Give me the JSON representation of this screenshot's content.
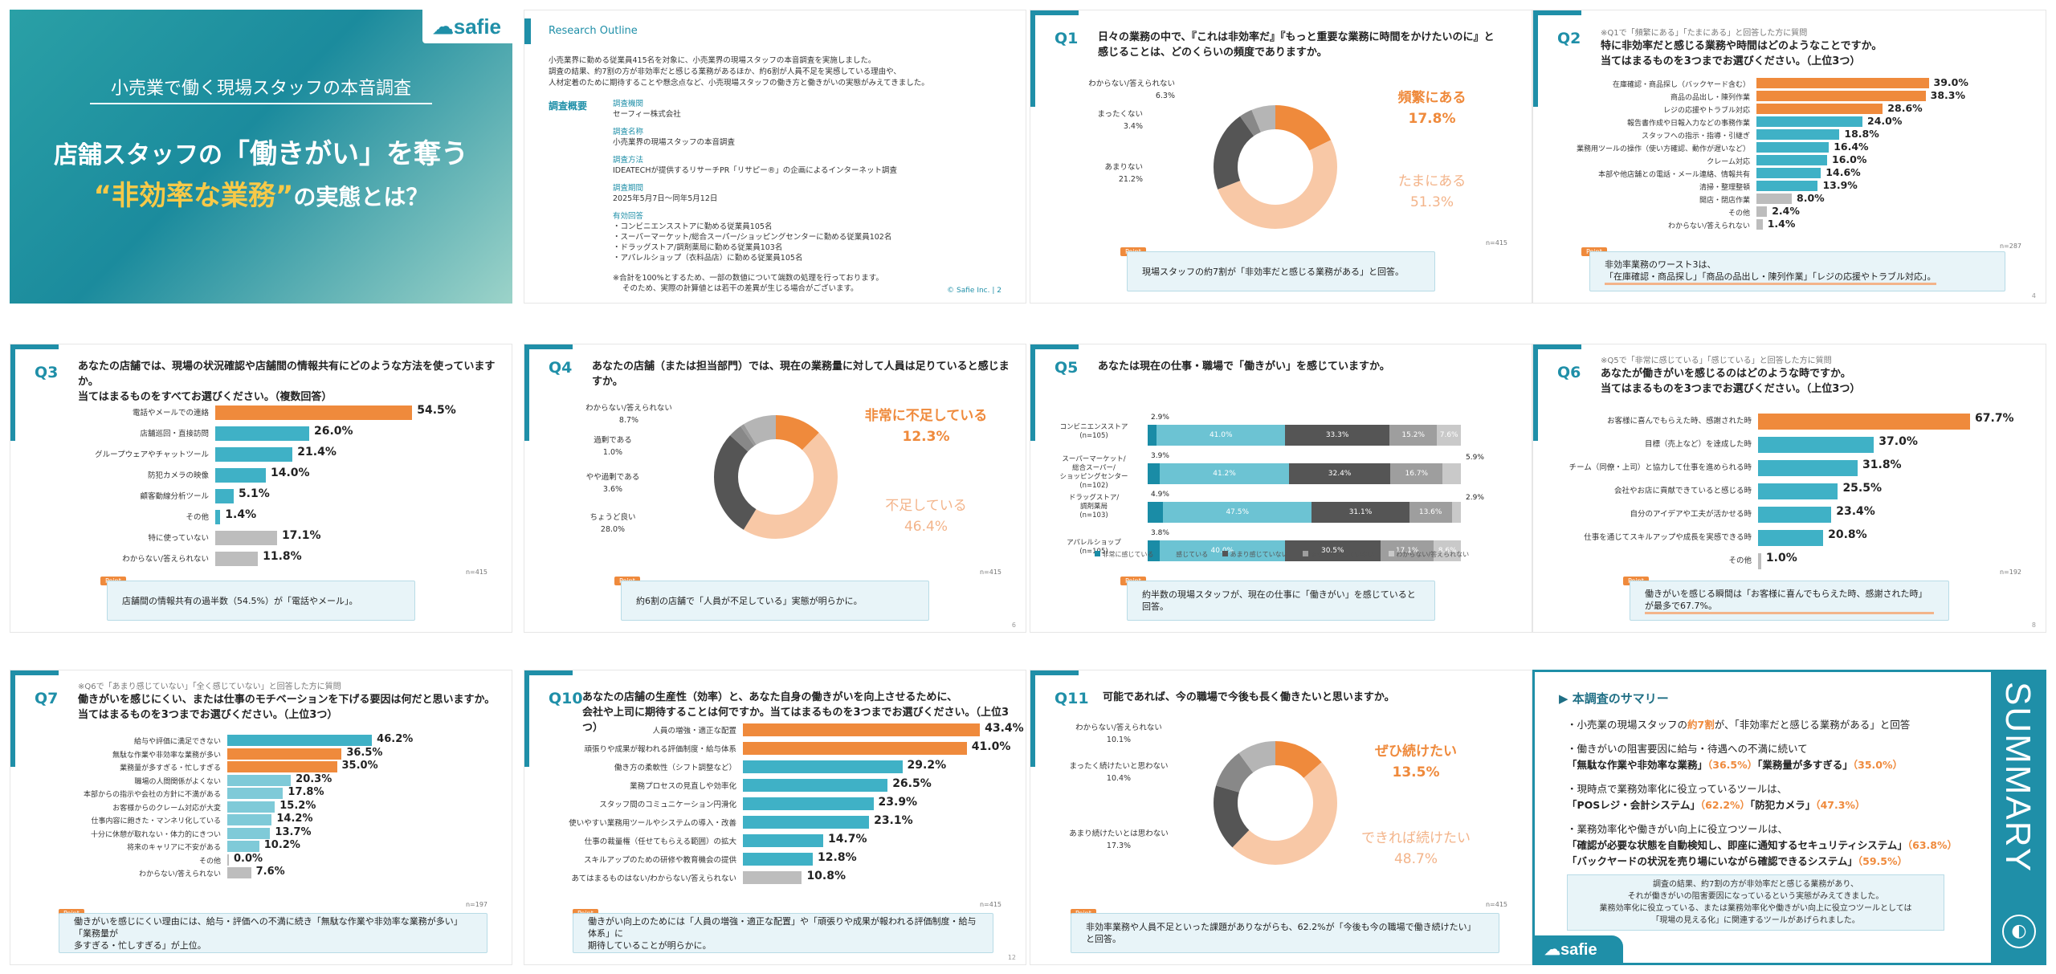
{
  "cover": {
    "brand": "safie",
    "subtitle": "小売業で働く現場スタッフの本音調査",
    "title_line1_a": "店舗スタッフの",
    "title_line1_b": "「働きがい」を奪う",
    "title_line2_a": "“非効率な業務”",
    "title_line2_b": "の実態とは？"
  },
  "outline": {
    "header": "Research Outline",
    "intro": [
      "小売業界に勤める従業員415名を対象に、小売業界の現場スタッフの本音調査を実施しました。",
      "調査の結果、約7割の方が非効率だと感じる業務があるほか、約6割が人員不足を実感している理由や、",
      "人材定着のために期待することや懸念点など、小売現場スタッフの働き方と働きがいの実態がみえてきました。"
    ],
    "section_label": "調査概要",
    "items": [
      {
        "k": "調査機関",
        "v": "セーフィー株式会社"
      },
      {
        "k": "調査名称",
        "v": "小売業界の現場スタッフの本音調査"
      },
      {
        "k": "調査方法",
        "v": "IDEATECHが提供するリサーチPR「リサピー®」の企画によるインターネット調査"
      },
      {
        "k": "調査期間",
        "v": "2025年5月7日〜同年5月12日"
      }
    ],
    "resp_label": "有効回答",
    "resp": [
      "・コンビニエンスストアに勤める従業員105名",
      "・スーパーマーケット/総合スーパー/ショッピングセンターに勤める従業員102名",
      "・ドラッグストア/調剤薬局に勤める従業員103名",
      "・アパレルショップ（衣料品店）に勤める従業員105名"
    ],
    "note": [
      "※合計を100%とするため、一部の数値について端数の処理を行っております。",
      "そのため、実際の計算値とは若干の差異が生じる場合がございます。"
    ],
    "copy": "© Safie Inc. |",
    "page": "2"
  },
  "q1": {
    "no": "Q1",
    "title1": "日々の業務の中で、『これは非効率だ』『もっと重要な業務に時間をかけたいのに』と",
    "title2": "感じることは、どのくらいの頻度でありますか。",
    "labels": [
      {
        "t": "わからない/答えられない",
        "v": "6.3%"
      },
      {
        "t": "まったくない",
        "v": "3.4%"
      },
      {
        "t": "あまりない",
        "v": "21.2%"
      }
    ],
    "big1": "頻繁にある",
    "big1v": "17.8%",
    "big2": "たまにある",
    "big2v": "51.3%",
    "n": "n=415",
    "point": "現場スタッフの約7割が「非効率だと感じる業務がある」と回答。"
  },
  "q2": {
    "no": "Q2",
    "note": "※Q1で「頻繁にある」「たまにある」と回答した方に質問",
    "title1": "特に非効率だと感じる業務や時間はどのようなことですか。",
    "title2": "当てはまるものを3つまでお選びください。（上位3つ）",
    "chart_data": {
      "type": "bar",
      "categories": [
        "在庫確認・商品探し（バックヤード含む）",
        "商品の品出し・陳列作業",
        "レジの応援やトラブル対応",
        "報告書作成や日報入力などの事務作業",
        "スタッフへの指示・指導・引継ぎ",
        "業務用ツールの操作（使い方確認、動作が遅いなど）",
        "クレーム対応",
        "本部や他店舗との電話・メール連絡、情報共有",
        "清掃・整理整頓",
        "開店・閉店作業",
        "その他",
        "わからない/答えられない"
      ],
      "values": [
        39.0,
        38.3,
        28.6,
        24.0,
        18.8,
        16.4,
        16.0,
        14.6,
        13.9,
        8.0,
        2.4,
        1.4
      ]
    },
    "labels": [
      "39.0%",
      "38.3%",
      "28.6%",
      "24.0%",
      "18.8%",
      "16.4%",
      "16.0%",
      "14.6%",
      "13.9%",
      "8.0%",
      "2.4%",
      "1.4%"
    ],
    "n": "n=287",
    "point1": "非効率業務のワースト3は、",
    "point2": "「在庫確認・商品探し」「商品の品出し・陳列作業」「レジの応援やトラブル対応」。",
    "page": "4"
  },
  "q3": {
    "no": "Q3",
    "title1": "あなたの店舗では、現場の状況確認や店舗間の情報共有にどのような方法を使っていますか。",
    "title2": "当てはまるものをすべてお選びください。（複数回答）",
    "chart_data": {
      "type": "bar",
      "categories": [
        "電話やメールでの連絡",
        "店舗巡回・直接訪問",
        "グループウェアやチャットツール",
        "防犯カメラの映像",
        "顧客動線分析ツール",
        "その他",
        "特に使っていない",
        "わからない/答えられない"
      ],
      "values": [
        54.5,
        26.0,
        21.4,
        14.0,
        5.1,
        1.4,
        17.1,
        11.8
      ]
    },
    "labels": [
      "54.5%",
      "26.0%",
      "21.4%",
      "14.0%",
      "5.1%",
      "1.4%",
      "17.1%",
      "11.8%"
    ],
    "n": "n=415",
    "point": "店舗間の情報共有の過半数（54.5%）が「電話やメール」。"
  },
  "q4": {
    "no": "Q4",
    "title1": "あなたの店舗（または担当部門）では、現在の業務量に対して人員は足りていると感じますか。",
    "labels": [
      {
        "t": "わからない/答えられない",
        "v": "8.7%"
      },
      {
        "t": "過剰である",
        "v": "1.0%"
      },
      {
        "t": "やや過剰である",
        "v": "3.6%"
      },
      {
        "t": "ちょうど良い",
        "v": "28.0%"
      }
    ],
    "big1": "非常に不足している",
    "big1v": "12.3%",
    "big2": "不足している",
    "big2v": "46.4%",
    "n": "n=415",
    "point": "約6割の店舗で「人員が不足している」実態が明らかに。",
    "page": "6"
  },
  "q5": {
    "no": "Q5",
    "title1": "あなたは現在の仕事・職場で「働きがい」を感じていますか。",
    "chart_data": {
      "type": "bar",
      "stacked": true,
      "categories": [
        "コンビニエンスストア（n=105）",
        "スーパーマーケット/総合スーパー/ショッピングセンター（n=102）",
        "ドラッグストア/調剤薬局（n=103）",
        "アパレルショップ（n=105）"
      ],
      "series": [
        {
          "name": "非常に感じている",
          "values": [
            2.9,
            3.9,
            4.9,
            3.8
          ]
        },
        {
          "name": "感じている",
          "values": [
            41.0,
            41.2,
            47.5,
            40.0
          ]
        },
        {
          "name": "あまり感じていない",
          "values": [
            33.3,
            32.4,
            31.1,
            30.5
          ]
        },
        {
          "name": "まったく感じていない",
          "values": [
            15.2,
            16.7,
            13.6,
            17.1
          ]
        },
        {
          "name": "わからない/答えられない",
          "values": [
            7.6,
            5.9,
            2.9,
            8.6
          ]
        }
      ]
    },
    "rows": [
      {
        "l1": "コンビニエンスストア",
        "l2": "(n=105)",
        "top": "2.9%",
        "v": [
          "41.0%",
          "33.3%",
          "15.2%",
          "7.6%"
        ]
      },
      {
        "l1": "スーパーマーケット/",
        "l2": "総合スーパー/",
        "l3": "ショッピングセンター",
        "l4": "(n=102)",
        "top": "3.9%",
        "v": [
          "41.2%",
          "32.4%",
          "16.7%",
          ""
        ],
        "side": "5.9%"
      },
      {
        "l1": "ドラッグストア/",
        "l2": "調剤薬局",
        "l3": "(n=103)",
        "top": "4.9%",
        "v": [
          "47.5%",
          "31.1%",
          "13.6%",
          ""
        ],
        "side": "2.9%"
      },
      {
        "l1": "アパレルショップ",
        "l2": "(n=105)",
        "top": "3.8%",
        "v": [
          "40.0%",
          "30.5%",
          "17.1%",
          "8.6%"
        ]
      }
    ],
    "legend": [
      "非常に感じている",
      "感じている",
      "あまり感じていない",
      "まったく感じていない",
      "わからない/答えられない"
    ],
    "point": "約半数の現場スタッフが、現在の仕事に「働きがい」を感じていると回答。"
  },
  "q6": {
    "no": "Q6",
    "note": "※Q5で「非常に感じている」「感じている」と回答した方に質問",
    "title1": "あなたが働きがいを感じるのはどのような時ですか。",
    "title2": "当てはまるものを3つまでお選びください。（上位3つ）",
    "chart_data": {
      "type": "bar",
      "categories": [
        "お客様に喜んでもらえた時、感謝された時",
        "目標（売上など）を達成した時",
        "チーム（同僚・上司）と協力して仕事を進められる時",
        "会社やお店に貢献できていると感じる時",
        "自分のアイデアや工夫が活かせる時",
        "仕事を通じてスキルアップや成長を実感できる時",
        "その他"
      ],
      "values": [
        67.7,
        37.0,
        31.8,
        25.5,
        23.4,
        20.8,
        1.0
      ]
    },
    "labels": [
      "67.7%",
      "37.0%",
      "31.8%",
      "25.5%",
      "23.4%",
      "20.8%",
      "1.0%"
    ],
    "n": "n=192",
    "point": "働きがいを感じる瞬間は「お客様に喜んでもらえた時、感謝された時」が最多で67.7%。",
    "page": "8"
  },
  "q7": {
    "no": "Q7",
    "note": "※Q6で「あまり感じていない」「全く感じていない」と回答した方に質問",
    "title1": "働きがいを感じにくい、または仕事のモチベーションを下げる要因は何だと思いますか。",
    "title2": "当てはまるものを3つまでお選びください。（上位3つ）",
    "chart_data": {
      "type": "bar",
      "categories": [
        "給与や評価に満足できない",
        "無駄な作業や非効率な業務が多い",
        "業務量が多すぎる・忙しすぎる",
        "職場の人間関係がよくない",
        "本部からの指示や会社の方針に不満がある",
        "お客様からのクレーム対応が大変",
        "仕事内容に飽きた・マンネリ化している",
        "十分に休憩が取れない・体力的にきつい",
        "将来のキャリアに不安がある",
        "その他",
        "わからない/答えられない"
      ],
      "values": [
        46.2,
        36.5,
        35.0,
        20.3,
        17.8,
        15.2,
        14.2,
        13.7,
        10.2,
        0.0,
        7.6
      ]
    },
    "labels": [
      "46.2%",
      "36.5%",
      "35.0%",
      "20.3%",
      "17.8%",
      "15.2%",
      "14.2%",
      "13.7%",
      "10.2%",
      "0.0%",
      "7.6%"
    ],
    "n": "n=197",
    "point1": "働きがいを感じにくい理由には、給与・評価への不満に続き「無駄な作業や非効率な業務が多い」「業務量が",
    "point2": "多すぎる・忙しすぎる」が上位。"
  },
  "q10": {
    "no": "Q10",
    "title1": "あなたの店舗の生産性（効率）と、あなた自身の働きがいを向上させるために、",
    "title2": "会社や上司に期待することは何ですか。当てはまるものを3つまでお選びください。（上位3つ）",
    "chart_data": {
      "type": "bar",
      "categories": [
        "人員の増強・適正な配置",
        "頑張りや成果が報われる評価制度・給与体系",
        "働き方の柔軟性（シフト調整など）",
        "業務プロセスの見直しや効率化",
        "スタッフ間のコミュニケーション円滑化",
        "使いやすい業務用ツールやシステムの導入・改善",
        "仕事の裁量権（任せてもらえる範囲）の拡大",
        "スキルアップのための研修や教育機会の提供",
        "あてはまるものはない/わからない/答えられない"
      ],
      "values": [
        43.4,
        41.0,
        29.2,
        26.5,
        23.9,
        23.1,
        14.7,
        12.8,
        10.8
      ]
    },
    "labels": [
      "43.4%",
      "41.0%",
      "29.2%",
      "26.5%",
      "23.9%",
      "23.1%",
      "14.7%",
      "12.8%",
      "10.8%"
    ],
    "n": "n=415",
    "point1": "働きがい向上のためには「人員の増強・適正な配置」や「頑張りや成果が報われる評価制度・給与体系」に",
    "point2": "期待していることが明らかに。",
    "page": "12"
  },
  "q11": {
    "no": "Q11",
    "title1": "可能であれば、今の職場で今後も長く働きたいと思いますか。",
    "labels": [
      {
        "t": "わからない/答えられない",
        "v": "10.1%"
      },
      {
        "t": "まったく続けたいと思わない",
        "v": "10.4%"
      },
      {
        "t": "あまり続けたいとは思わない",
        "v": "17.3%"
      }
    ],
    "big1": "ぜひ続けたい",
    "big1v": "13.5%",
    "big2": "できれば続けたい",
    "big2v": "48.7%",
    "n": "n=415",
    "point": "非効率業務や人員不足といった課題がありながらも、62.2%が「今後も今の職場で働き続けたい」と回答。"
  },
  "summary": {
    "head": "▶ 本調査のサマリー",
    "vertical": "SUMMARY",
    "b1_a": "・小売業の現場スタッフの",
    "b1_h": "約7割",
    "b1_b": "が、「非効率だと感じる業務がある」と回答",
    "b2": "・働きがいの阻害要因に給与・待遇への不満に続いて",
    "b2b_a": "「無駄な作業や非効率な業務」",
    "b2b_h1": "（36.5%）",
    "b2b_b": "「業務量が多すぎる」",
    "b2b_h2": "（35.0%）",
    "b3": "・現時点で業務効率化に役立っているツールは、",
    "b3b_a": "「POSレジ・会計システム」",
    "b3b_h1": "（62.2%）",
    "b3b_b": "「防犯カメラ」",
    "b3b_h2": "（47.3%）",
    "b4": "・業務効率化や働きがい向上に役立つツールは、",
    "b4b_a": "「確認が必要な状態を自動検知し、即座に通知するセキュリティシステム」",
    "b4b_h1": "（63.8%）",
    "b4c_a": "「バックヤードの状況を売り場にいながら確認できるシステム」",
    "b4c_h1": "（59.5%）",
    "box": [
      "調査の結果、約7割の方が非効率だと感じる業務があり、",
      "それが働きがいの阻害要因になっているという実態がみえてきました。",
      "業務効率化に役立っている、または業務効率化や働きがい向上に役立つツールとしては",
      "「現場の見える化」に関連するツールがあげられました。"
    ],
    "brand": "safie"
  },
  "colors": {
    "teal": "#1f8fa8",
    "orange": "#ef8a3c",
    "peach": "#f8c8a6",
    "dark": "#555555",
    "grey": "#9e9e9e"
  }
}
